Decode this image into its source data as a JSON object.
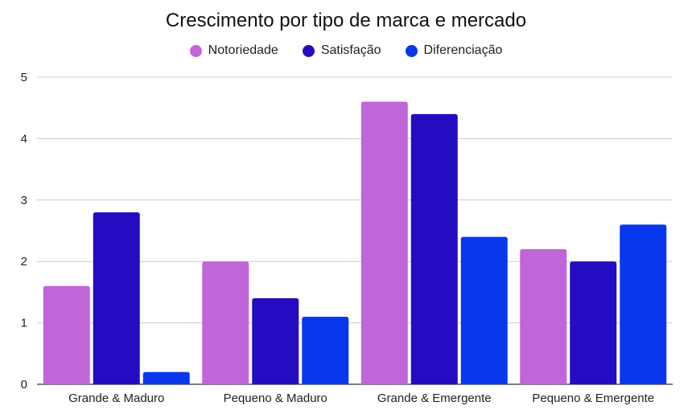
{
  "chart_data": {
    "type": "bar",
    "title": "Crescimento por tipo de marca e mercado",
    "xlabel": "",
    "ylabel": "",
    "categories": [
      "Grande & Maduro",
      "Pequeno & Maduro",
      "Grande & Emergente",
      "Pequeno & Emergente"
    ],
    "series": [
      {
        "name": "Notoriedade",
        "color": "#c066d9",
        "values": [
          1.6,
          2.0,
          4.6,
          2.2
        ]
      },
      {
        "name": "Satisfação",
        "color": "#230cc1",
        "values": [
          2.8,
          1.4,
          4.4,
          2.0
        ]
      },
      {
        "name": "Diferenciação",
        "color": "#0837ee",
        "values": [
          0.2,
          1.1,
          2.4,
          2.6
        ]
      }
    ],
    "ylim": [
      0,
      5
    ],
    "yticks": [
      0,
      1,
      2,
      3,
      4,
      5
    ],
    "grid": true,
    "legend_position": "top-center"
  }
}
